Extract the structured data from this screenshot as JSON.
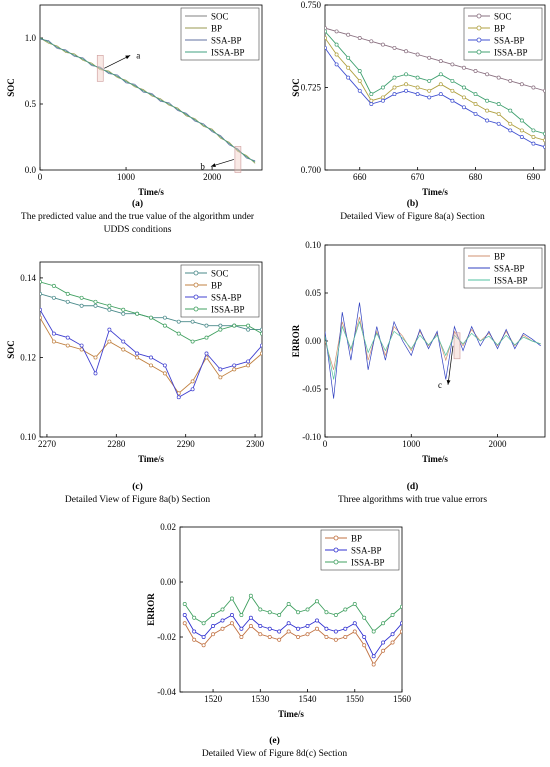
{
  "chart_data": [
    {
      "type": "line",
      "label": "(a)",
      "caption": "The predicted value and the true value of the algorithm under UDDS conditions",
      "xlabel": "Time/s",
      "ylabel": "SOC",
      "markers": false,
      "legend": "upper right",
      "xlim": [
        0,
        2580
      ],
      "ylim": [
        0,
        1.25
      ],
      "xticks": [
        0,
        1000,
        2000
      ],
      "yticks": [
        {
          "value": 0,
          "label": "0.0"
        },
        0.5,
        {
          "value": 1,
          "label": "1.0"
        }
      ],
      "x": [
        0,
        100,
        200,
        300,
        400,
        500,
        600,
        700,
        800,
        900,
        1000,
        1100,
        1200,
        1300,
        1400,
        1500,
        1600,
        1700,
        1800,
        1900,
        2000,
        2100,
        2200,
        2300,
        2400,
        2500
      ],
      "series": [
        {
          "name": "SOC",
          "color": "#808080",
          "values": [
            1.0,
            0.97,
            0.93,
            0.9,
            0.87,
            0.84,
            0.8,
            0.77,
            0.74,
            0.71,
            0.67,
            0.64,
            0.6,
            0.57,
            0.53,
            0.5,
            0.46,
            0.42,
            0.38,
            0.34,
            0.3,
            0.25,
            0.2,
            0.15,
            0.1,
            0.06
          ]
        },
        {
          "name": "BP",
          "color": "#9a9a50",
          "values": [
            1.0,
            0.96,
            0.94,
            0.89,
            0.88,
            0.83,
            0.81,
            0.76,
            0.75,
            0.7,
            0.68,
            0.63,
            0.61,
            0.56,
            0.54,
            0.49,
            0.47,
            0.41,
            0.39,
            0.33,
            0.31,
            0.24,
            0.21,
            0.14,
            0.11,
            0.05
          ]
        },
        {
          "name": "SSA-BP",
          "color": "#6070a0",
          "values": [
            0.99,
            0.98,
            0.92,
            0.91,
            0.86,
            0.85,
            0.79,
            0.78,
            0.73,
            0.72,
            0.66,
            0.65,
            0.59,
            0.58,
            0.52,
            0.51,
            0.45,
            0.43,
            0.37,
            0.35,
            0.29,
            0.26,
            0.19,
            0.16,
            0.09,
            0.07
          ]
        },
        {
          "name": "ISSA-BP",
          "color": "#40a080",
          "values": [
            1.0,
            0.97,
            0.93,
            0.9,
            0.87,
            0.84,
            0.8,
            0.77,
            0.74,
            0.71,
            0.67,
            0.64,
            0.6,
            0.57,
            0.53,
            0.5,
            0.46,
            0.42,
            0.38,
            0.34,
            0.3,
            0.25,
            0.2,
            0.15,
            0.1,
            0.06
          ]
        }
      ],
      "annotations": [
        {
          "text": "a",
          "x": 700,
          "y": 0.77
        },
        {
          "text": "b",
          "x": 2300,
          "y": 0.08
        }
      ]
    },
    {
      "type": "line",
      "label": "(b)",
      "caption": "Detailed View of Figure 8a(a) Section",
      "xlabel": "Time/s",
      "ylabel": "SOC",
      "markers": true,
      "legend": "upper right",
      "xlim": [
        654,
        692
      ],
      "ylim": [
        0.7,
        0.75
      ],
      "xticks": [
        660,
        670,
        680,
        690
      ],
      "yticks": [
        {
          "value": 0.7,
          "label": "0.700"
        },
        0.725,
        {
          "value": 0.75,
          "label": "0.750"
        }
      ],
      "x": [
        654,
        656,
        658,
        660,
        662,
        664,
        666,
        668,
        670,
        672,
        674,
        676,
        678,
        680,
        682,
        684,
        686,
        688,
        690,
        692
      ],
      "series": [
        {
          "name": "SOC",
          "color": "#8a7080",
          "values": [
            0.743,
            0.742,
            0.741,
            0.74,
            0.739,
            0.738,
            0.737,
            0.736,
            0.735,
            0.734,
            0.733,
            0.732,
            0.731,
            0.73,
            0.729,
            0.728,
            0.727,
            0.726,
            0.725,
            0.724
          ]
        },
        {
          "name": "BP",
          "color": "#b0a040",
          "values": [
            0.74,
            0.735,
            0.731,
            0.727,
            0.721,
            0.722,
            0.725,
            0.726,
            0.725,
            0.724,
            0.726,
            0.724,
            0.722,
            0.72,
            0.718,
            0.717,
            0.714,
            0.712,
            0.71,
            0.709
          ]
        },
        {
          "name": "SSA-BP",
          "color": "#4050d0",
          "values": [
            0.737,
            0.732,
            0.728,
            0.724,
            0.72,
            0.721,
            0.723,
            0.724,
            0.723,
            0.722,
            0.723,
            0.721,
            0.719,
            0.717,
            0.715,
            0.714,
            0.712,
            0.71,
            0.708,
            0.707
          ]
        },
        {
          "name": "ISSA-BP",
          "color": "#40a070",
          "values": [
            0.742,
            0.738,
            0.734,
            0.73,
            0.723,
            0.725,
            0.728,
            0.729,
            0.728,
            0.727,
            0.729,
            0.727,
            0.725,
            0.723,
            0.721,
            0.72,
            0.718,
            0.715,
            0.712,
            0.711
          ]
        }
      ]
    },
    {
      "type": "line",
      "label": "(c)",
      "caption": "Detailed View of Figure 8a(b) Section",
      "xlabel": "Time/s",
      "ylabel": "SOC",
      "markers": true,
      "legend": "upper right",
      "xlim": [
        2269,
        2301
      ],
      "ylim": [
        0.1,
        0.144
      ],
      "xticks": [
        2270,
        2280,
        2290,
        2300
      ],
      "yticks": [
        {
          "value": 0.1,
          "label": "0.10"
        },
        0.12,
        0.14
      ],
      "x": [
        2269,
        2271,
        2273,
        2275,
        2277,
        2279,
        2281,
        2283,
        2285,
        2287,
        2289,
        2291,
        2293,
        2295,
        2297,
        2299,
        2301
      ],
      "series": [
        {
          "name": "SOC",
          "color": "#4a8a8a",
          "values": [
            0.136,
            0.135,
            0.134,
            0.133,
            0.133,
            0.132,
            0.131,
            0.131,
            0.13,
            0.13,
            0.129,
            0.129,
            0.128,
            0.128,
            0.128,
            0.127,
            0.127
          ]
        },
        {
          "name": "BP",
          "color": "#c08040",
          "values": [
            0.13,
            0.124,
            0.123,
            0.122,
            0.12,
            0.124,
            0.122,
            0.12,
            0.118,
            0.116,
            0.111,
            0.114,
            0.12,
            0.115,
            0.117,
            0.118,
            0.121
          ]
        },
        {
          "name": "SSA-BP",
          "color": "#4040d0",
          "values": [
            0.132,
            0.126,
            0.125,
            0.123,
            0.116,
            0.127,
            0.124,
            0.121,
            0.12,
            0.118,
            0.11,
            0.112,
            0.121,
            0.117,
            0.118,
            0.119,
            0.123
          ]
        },
        {
          "name": "ISSA-BP",
          "color": "#40a060",
          "values": [
            0.139,
            0.138,
            0.136,
            0.135,
            0.134,
            0.133,
            0.132,
            0.131,
            0.13,
            0.128,
            0.126,
            0.124,
            0.125,
            0.127,
            0.128,
            0.128,
            0.126
          ]
        }
      ]
    },
    {
      "type": "line",
      "label": "(d)",
      "caption": "Three algorithms with true value errors",
      "xlabel": "Time/s",
      "ylabel": "ERROR",
      "markers": false,
      "legend": "upper right",
      "xlim": [
        0,
        2550
      ],
      "ylim": [
        -0.1,
        0.1
      ],
      "xticks": [
        0,
        1000,
        2000
      ],
      "yticks": [
        {
          "value": -0.1,
          "label": "-0.10"
        },
        -0.05,
        {
          "value": 0,
          "label": "0.00"
        },
        0.05,
        {
          "value": 0.1,
          "label": "0.10"
        }
      ],
      "x": [
        0,
        100,
        200,
        300,
        400,
        500,
        600,
        700,
        800,
        900,
        1000,
        1100,
        1200,
        1300,
        1400,
        1500,
        1600,
        1700,
        1800,
        1900,
        2000,
        2100,
        2200,
        2300,
        2400,
        2500
      ],
      "series": [
        {
          "name": "BP",
          "color": "#d09070",
          "values": [
            0.0,
            -0.03,
            0.02,
            -0.01,
            0.025,
            -0.02,
            0.01,
            -0.015,
            0.015,
            0.005,
            -0.01,
            0.01,
            -0.005,
            0.008,
            -0.02,
            0.01,
            -0.005,
            0.012,
            0.0,
            0.008,
            -0.005,
            0.01,
            -0.005,
            0.006,
            0.0,
            -0.003
          ]
        },
        {
          "name": "SSA-BP",
          "color": "#3040c0",
          "values": [
            0.01,
            -0.06,
            0.03,
            -0.02,
            0.04,
            -0.03,
            0.015,
            -0.02,
            0.02,
            0.0,
            -0.015,
            0.012,
            -0.008,
            0.01,
            -0.04,
            0.015,
            -0.01,
            0.015,
            -0.005,
            0.01,
            -0.008,
            0.012,
            -0.008,
            0.008,
            0.002,
            -0.005
          ]
        },
        {
          "name": "ISSA-BP",
          "color": "#50c0a0",
          "values": [
            0.005,
            -0.04,
            0.015,
            -0.008,
            0.02,
            -0.012,
            0.008,
            -0.01,
            0.01,
            0.003,
            -0.008,
            0.006,
            -0.004,
            0.006,
            -0.015,
            0.006,
            -0.003,
            0.008,
            0.0,
            0.005,
            -0.004,
            0.006,
            -0.004,
            0.004,
            0.0,
            -0.003
          ]
        }
      ],
      "annotations": [
        {
          "text": "c",
          "x": 1530,
          "y": -0.005
        }
      ]
    },
    {
      "type": "line",
      "label": "(e)",
      "caption": "Detailed View of Figure 8d(c) Section",
      "xlabel": "Time/s",
      "ylabel": "ERROR",
      "markers": true,
      "legend": "upper right",
      "xlim": [
        1513,
        1560
      ],
      "ylim": [
        -0.04,
        0.02
      ],
      "xticks": [
        1520,
        1530,
        1540,
        1550,
        1560
      ],
      "yticks": [
        -0.04,
        -0.02,
        {
          "value": 0,
          "label": "0.00"
        },
        0.02
      ],
      "x": [
        1514,
        1516,
        1518,
        1520,
        1522,
        1524,
        1526,
        1528,
        1530,
        1532,
        1534,
        1536,
        1538,
        1540,
        1542,
        1544,
        1546,
        1548,
        1550,
        1552,
        1554,
        1556,
        1558,
        1560
      ],
      "series": [
        {
          "name": "BP",
          "color": "#c07040",
          "values": [
            -0.015,
            -0.021,
            -0.023,
            -0.019,
            -0.017,
            -0.015,
            -0.02,
            -0.016,
            -0.019,
            -0.02,
            -0.021,
            -0.018,
            -0.02,
            -0.019,
            -0.017,
            -0.02,
            -0.021,
            -0.02,
            -0.018,
            -0.023,
            -0.03,
            -0.025,
            -0.022,
            -0.018
          ]
        },
        {
          "name": "SSA-BP",
          "color": "#3030d0",
          "values": [
            -0.012,
            -0.018,
            -0.02,
            -0.016,
            -0.014,
            -0.012,
            -0.017,
            -0.013,
            -0.016,
            -0.017,
            -0.018,
            -0.015,
            -0.017,
            -0.016,
            -0.014,
            -0.017,
            -0.018,
            -0.017,
            -0.015,
            -0.02,
            -0.027,
            -0.022,
            -0.019,
            -0.015
          ]
        },
        {
          "name": "ISSA-BP",
          "color": "#40a060",
          "values": [
            -0.008,
            -0.013,
            -0.015,
            -0.012,
            -0.01,
            -0.006,
            -0.012,
            -0.005,
            -0.01,
            -0.011,
            -0.012,
            -0.008,
            -0.011,
            -0.01,
            -0.007,
            -0.011,
            -0.012,
            -0.01,
            -0.008,
            -0.013,
            -0.018,
            -0.015,
            -0.012,
            -0.009
          ]
        }
      ]
    }
  ]
}
